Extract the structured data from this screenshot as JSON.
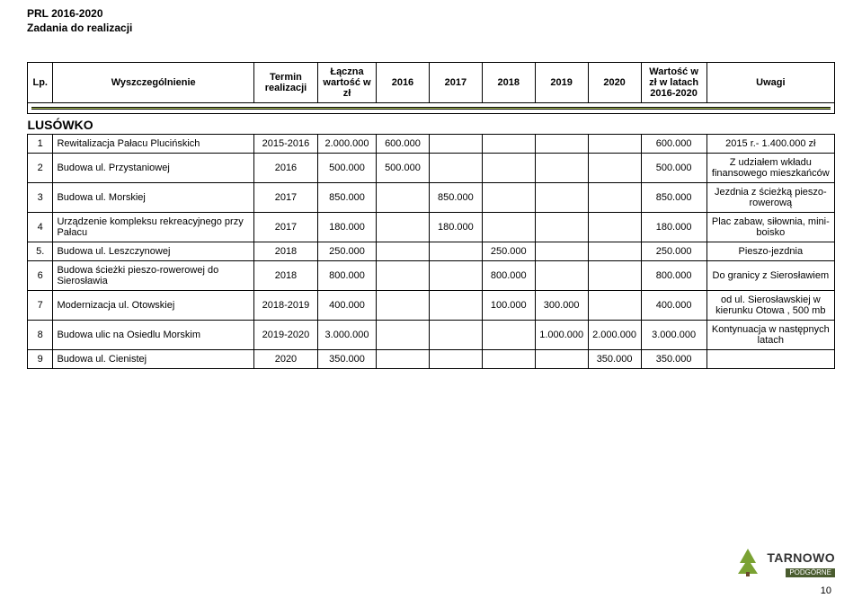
{
  "doc_header_line1": "PRL 2016-2020",
  "doc_header_line2": "Zadania do realizacji",
  "columns": {
    "lp": "Lp.",
    "name": "Wyszczególnienie",
    "term": "Termin realizacji",
    "total": "Łączna wartość w zł",
    "y2016": "2016",
    "y2017": "2017",
    "y2018": "2018",
    "y2019": "2019",
    "y2020": "2020",
    "val": "Wartość w zł w latach 2016-2020",
    "uwagi": "Uwagi"
  },
  "section": "LUSÓWKO",
  "rows": [
    {
      "lp": "1",
      "name": "Rewitalizacja Pałacu Plucińskich",
      "term": "2015-2016",
      "total": "2.000.000",
      "y2016": "600.000",
      "y2017": "",
      "y2018": "",
      "y2019": "",
      "y2020": "",
      "val": "600.000",
      "uwagi": "2015 r.- 1.400.000 zł"
    },
    {
      "lp": "2",
      "name": "Budowa ul. Przystaniowej",
      "term": "2016",
      "total": "500.000",
      "y2016": "500.000",
      "y2017": "",
      "y2018": "",
      "y2019": "",
      "y2020": "",
      "val": "500.000",
      "uwagi": "Z udziałem wkładu finansowego mieszkańców"
    },
    {
      "lp": "3",
      "name": "Budowa ul. Morskiej",
      "term": "2017",
      "total": "850.000",
      "y2016": "",
      "y2017": "850.000",
      "y2018": "",
      "y2019": "",
      "y2020": "",
      "val": "850.000",
      "uwagi": "Jezdnia z ścieżką pieszo-rowerową"
    },
    {
      "lp": "4",
      "name": "Urządzenie kompleksu rekreacyjnego przy Pałacu",
      "term": "2017",
      "total": "180.000",
      "y2016": "",
      "y2017": "180.000",
      "y2018": "",
      "y2019": "",
      "y2020": "",
      "val": "180.000",
      "uwagi": "Plac zabaw, siłownia, mini-boisko"
    },
    {
      "lp": "5.",
      "name": "Budowa ul. Leszczynowej",
      "term": "2018",
      "total": "250.000",
      "y2016": "",
      "y2017": "",
      "y2018": "250.000",
      "y2019": "",
      "y2020": "",
      "val": "250.000",
      "uwagi": "Pieszo-jezdnia"
    },
    {
      "lp": "6",
      "name": "Budowa ścieżki pieszo-rowerowej do Sierosławia",
      "term": "2018",
      "total": "800.000",
      "y2016": "",
      "y2017": "",
      "y2018": "800.000",
      "y2019": "",
      "y2020": "",
      "val": "800.000",
      "uwagi": "Do granicy z Sierosławiem"
    },
    {
      "lp": "7",
      "name": "Modernizacja ul. Otowskiej",
      "term": "2018-2019",
      "total": "400.000",
      "y2016": "",
      "y2017": "",
      "y2018": "100.000",
      "y2019": "300.000",
      "y2020": "",
      "val": "400.000",
      "uwagi": "od ul. Sierosławskiej w kierunku Otowa , 500 mb"
    },
    {
      "lp": "8",
      "name": "Budowa ulic na Osiedlu Morskim",
      "term": "2019-2020",
      "total": "3.000.000",
      "y2016": "",
      "y2017": "",
      "y2018": "",
      "y2019": "1.000.000",
      "y2020": "2.000.000",
      "val": "3.000.000",
      "uwagi": "Kontynuacja w następnych latach"
    },
    {
      "lp": "9",
      "name": "Budowa ul. Cienistej",
      "term": "2020",
      "total": "350.000",
      "y2016": "",
      "y2017": "",
      "y2018": "",
      "y2019": "",
      "y2020": "350.000",
      "val": "350.000",
      "uwagi": ""
    }
  ],
  "page_number": "10",
  "logo": {
    "main": "TARNOWO",
    "sub": "PODGÓRNE",
    "color_leaf": "#7aa233",
    "color_bar": "#4a5c2f"
  }
}
